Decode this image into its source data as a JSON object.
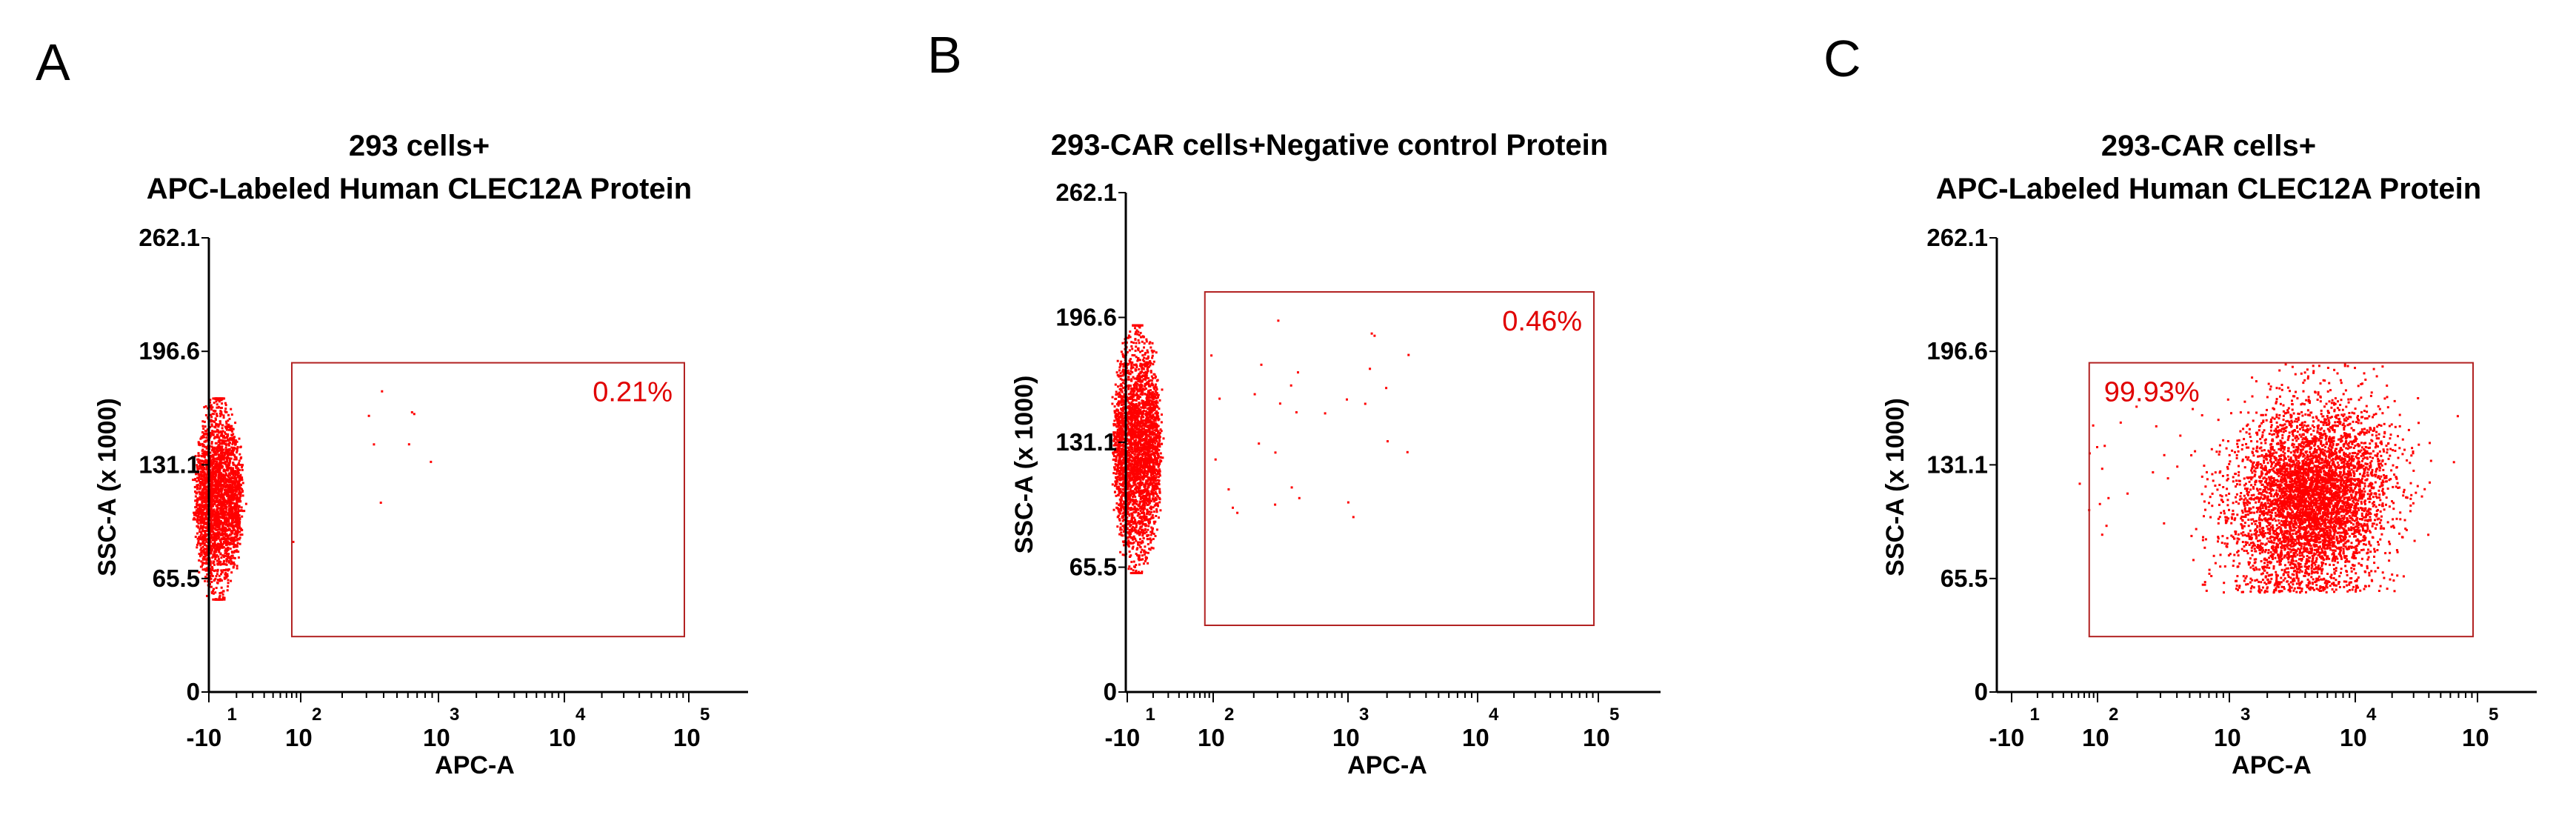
{
  "figure": {
    "colors": {
      "dots": "#ff0000",
      "gate": "#b22222",
      "gate_label": "#e00000",
      "axis": "#000000"
    }
  },
  "chart_data": [
    {
      "panel_letter": "A",
      "type": "scatter",
      "title_lines": [
        "293 cells+",
        "APC-Labeled Human CLEC12A Protein"
      ],
      "xlabel": "APC-A",
      "ylabel": "SSC-A (x 1000)",
      "y_ticks": [
        "0",
        "65.5",
        "131.1",
        "196.6",
        "262.1"
      ],
      "x_tick_labels": [
        {
          "base": "-10",
          "exp": "1"
        },
        {
          "base": "10",
          "exp": "2"
        },
        {
          "base": "10",
          "exp": "3"
        },
        {
          "base": "10",
          "exp": "4"
        },
        {
          "base": "10",
          "exp": "5"
        }
      ],
      "ylim": [
        0,
        262.1
      ],
      "gate": {
        "x_range": [
          80,
          100000
        ],
        "y_range": [
          32,
          190
        ],
        "label": "0.21%",
        "label_position": "top-right"
      },
      "populations": [
        {
          "shape": "ellipse",
          "count": 2600,
          "x_center": 0,
          "x_spread_decades": 0.16,
          "y_center": 112,
          "y_half_range": 58
        },
        {
          "shape": "sparse",
          "count": 9,
          "x_range": [
            80,
            900
          ],
          "y_range": [
            80,
            180
          ]
        }
      ]
    },
    {
      "panel_letter": "B",
      "type": "scatter",
      "title_lines": [
        "293-CAR cells+Negative control Protein"
      ],
      "xlabel": "APC-A",
      "ylabel": "SSC-A (x 1000)",
      "y_ticks": [
        "0",
        "65.5",
        "131.1",
        "196.6",
        "262.1"
      ],
      "x_tick_labels": [
        {
          "base": "-10",
          "exp": "1"
        },
        {
          "base": "10",
          "exp": "2"
        },
        {
          "base": "10",
          "exp": "3"
        },
        {
          "base": "10",
          "exp": "4"
        },
        {
          "base": "10",
          "exp": "5"
        }
      ],
      "ylim": [
        0,
        262.1
      ],
      "gate": {
        "x_range": [
          80,
          100000
        ],
        "y_range": [
          35,
          210
        ],
        "label": "0.46%",
        "label_position": "top-right"
      },
      "populations": [
        {
          "shape": "ellipse",
          "count": 3000,
          "x_center": 0,
          "x_spread_decades": 0.16,
          "y_center": 128,
          "y_half_range": 65
        },
        {
          "shape": "sparse",
          "count": 30,
          "x_range": [
            80,
            3000
          ],
          "y_range": [
            90,
            200
          ]
        }
      ]
    },
    {
      "panel_letter": "C",
      "type": "scatter",
      "title_lines": [
        "293-CAR cells+",
        "APC-Labeled Human CLEC12A Protein"
      ],
      "xlabel": "APC-A",
      "ylabel": "SSC-A (x 1000)",
      "y_ticks": [
        "0",
        "65.5",
        "131.1",
        "196.6",
        "262.1"
      ],
      "x_tick_labels": [
        {
          "base": "-10",
          "exp": "1"
        },
        {
          "base": "10",
          "exp": "2"
        },
        {
          "base": "10",
          "exp": "3"
        },
        {
          "base": "10",
          "exp": "4"
        },
        {
          "base": "10",
          "exp": "5"
        }
      ],
      "ylim": [
        0,
        262.1
      ],
      "gate": {
        "x_range": [
          80,
          100000
        ],
        "y_range": [
          32,
          190
        ],
        "label": "99.93%",
        "label_position": "top-left"
      },
      "populations": [
        {
          "shape": "blob",
          "count": 5200,
          "x_log_center": 3.65,
          "x_log_spread": 0.3,
          "y_center": 112,
          "y_spread": 26,
          "y_range": [
            58,
            190
          ]
        },
        {
          "shape": "sparse",
          "count": 30,
          "x_range": [
            60,
            900
          ],
          "y_range": [
            65,
            170
          ]
        }
      ]
    }
  ]
}
